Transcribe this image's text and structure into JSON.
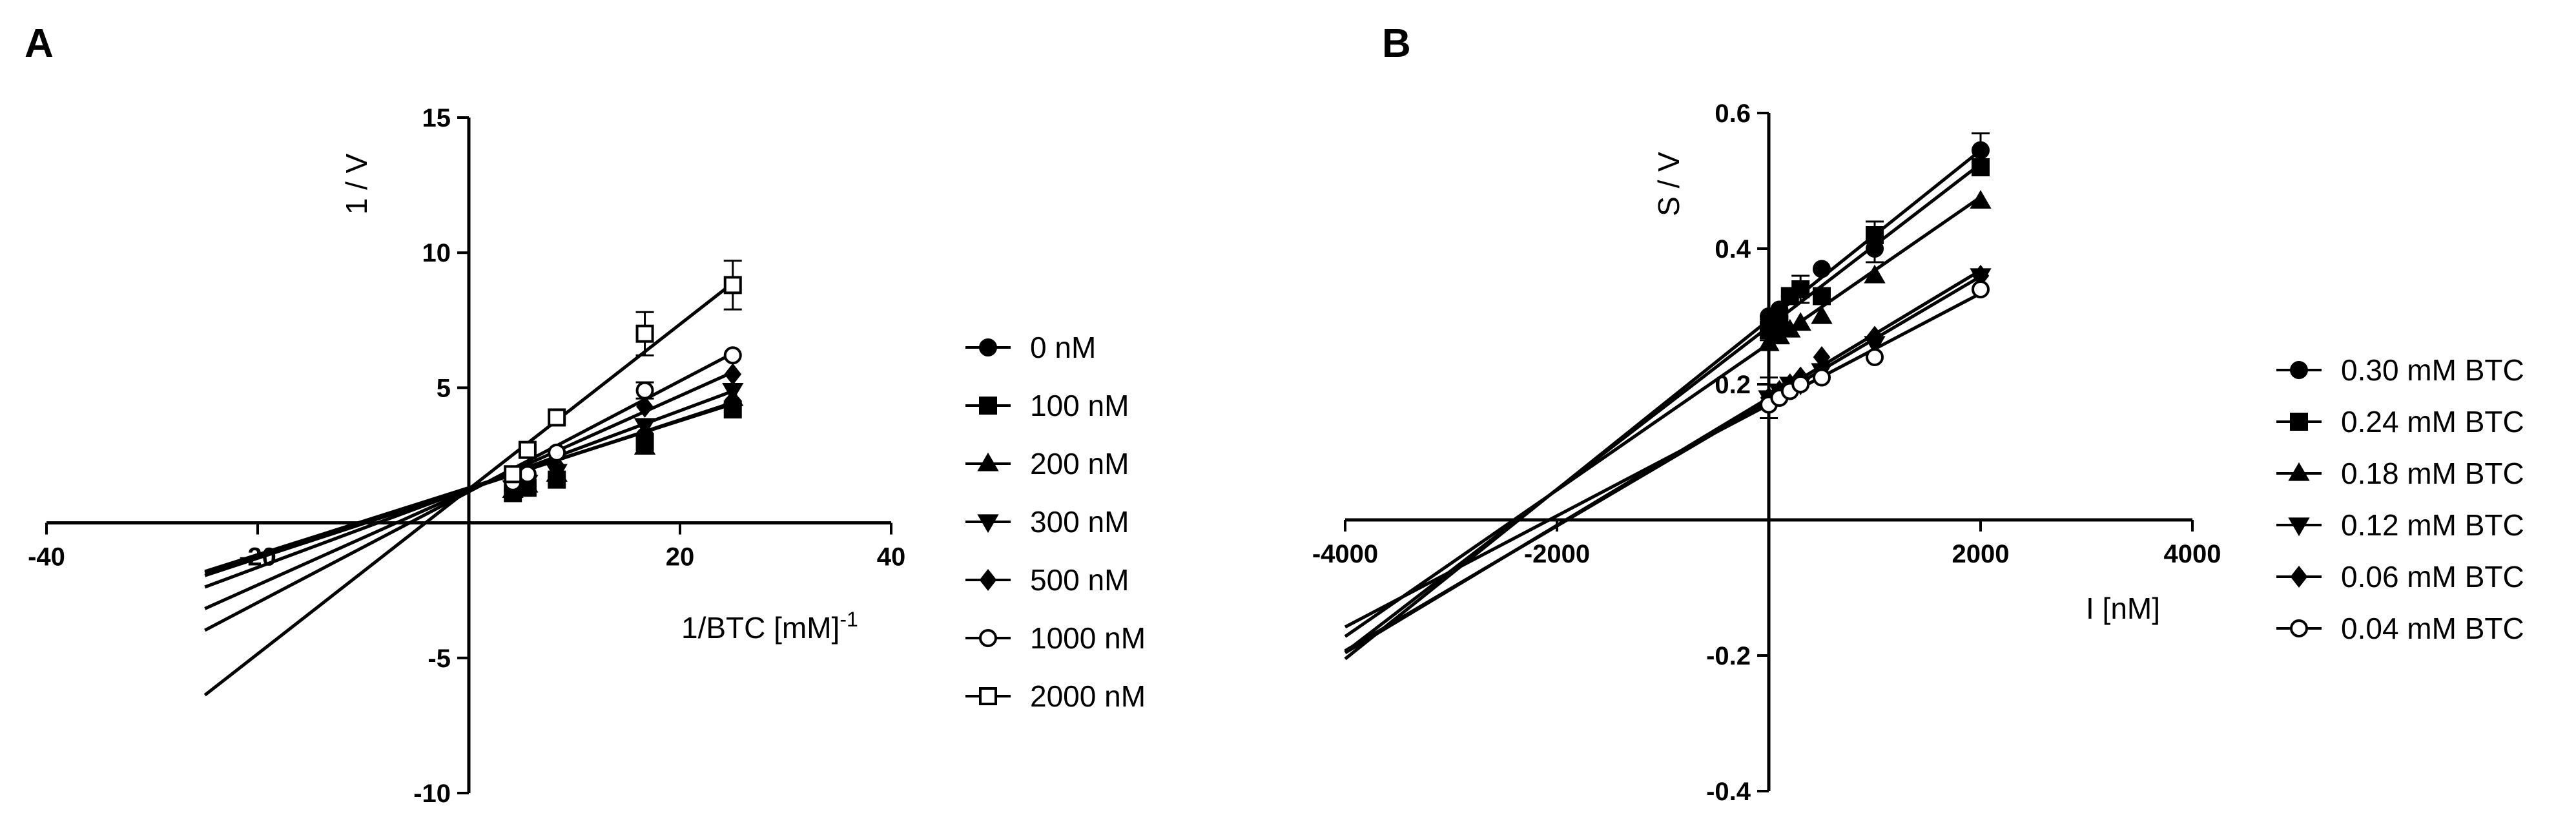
{
  "chart_data": [
    {
      "panel_label": "A",
      "type": "line",
      "title": "",
      "xlabel": "1/BTC [mM]",
      "xlabel_superscript": "-1",
      "ylabel": "1 / V",
      "xlim": [
        -40,
        40
      ],
      "ylim": [
        -10,
        15
      ],
      "xticks": [
        -40,
        -20,
        20,
        40
      ],
      "yticks": [
        -10,
        -5,
        5,
        10,
        15
      ],
      "grid": false,
      "legend_position": "right",
      "line_x_range": [
        -25,
        25
      ],
      "x_points": [
        4.17,
        5.56,
        8.33,
        16.67,
        25
      ],
      "series": [
        {
          "name": "0 nM",
          "marker": "circle-filled",
          "slope": 0.124,
          "intercept": 1.3,
          "values": [
            1.2,
            1.4,
            1.7,
            3.2,
            4.4
          ],
          "errors": [
            0,
            0,
            0,
            0,
            0
          ]
        },
        {
          "name": "100 nM",
          "marker": "square-filled",
          "slope": 0.128,
          "intercept": 1.25,
          "values": [
            1.1,
            1.3,
            1.6,
            3.0,
            4.2
          ],
          "errors": [
            0,
            0,
            0,
            0,
            0
          ]
        },
        {
          "name": "200 nM",
          "marker": "triangle-filled",
          "slope": 0.125,
          "intercept": 1.28,
          "values": [
            1.2,
            1.4,
            1.8,
            2.8,
            4.6
          ],
          "errors": [
            0,
            0,
            0,
            0,
            0
          ]
        },
        {
          "name": "300 nM",
          "marker": "triangle-down-filled",
          "slope": 0.145,
          "intercept": 1.25,
          "values": [
            1.3,
            1.5,
            1.9,
            3.6,
            4.9
          ],
          "errors": [
            0,
            0,
            0,
            0,
            0
          ]
        },
        {
          "name": "500 nM",
          "marker": "diamond-filled",
          "slope": 0.175,
          "intercept": 1.2,
          "values": [
            1.3,
            1.6,
            2.1,
            4.3,
            5.5
          ],
          "errors": [
            0,
            0,
            0,
            0,
            0
          ]
        },
        {
          "name": "1000 nM",
          "marker": "circle-open",
          "slope": 0.205,
          "intercept": 1.15,
          "values": [
            1.5,
            1.8,
            2.6,
            4.9,
            6.2
          ],
          "errors": [
            0,
            0,
            0,
            0.3,
            0
          ]
        },
        {
          "name": "2000 nM",
          "marker": "square-open",
          "slope": 0.305,
          "intercept": 1.25,
          "values": [
            1.8,
            2.7,
            3.9,
            7.0,
            8.8
          ],
          "errors": [
            0,
            0,
            0,
            0.8,
            0.9
          ]
        }
      ]
    },
    {
      "panel_label": "B",
      "type": "line",
      "title": "",
      "xlabel": "I [nM]",
      "ylabel": "S / V",
      "xlim": [
        -4000,
        4000
      ],
      "ylim": [
        -0.4,
        0.6
      ],
      "xticks": [
        -4000,
        -2000,
        2000,
        4000
      ],
      "yticks": [
        -0.4,
        -0.2,
        0.2,
        0.4,
        0.6
      ],
      "grid": false,
      "legend_position": "right",
      "line_x_range": [
        -4000,
        2000
      ],
      "x_points": [
        0,
        100,
        200,
        300,
        500,
        1000,
        2000
      ],
      "series": [
        {
          "name": "0.30 mM BTC",
          "marker": "circle-filled",
          "slope": 0.000125,
          "intercept": 0.295,
          "values": [
            0.3,
            0.31,
            0.33,
            0.34,
            0.37,
            0.4,
            0.545
          ],
          "errors": [
            0,
            0,
            0,
            0.02,
            0,
            0.02,
            0.025
          ]
        },
        {
          "name": "0.24 mM BTC",
          "marker": "square-filled",
          "slope": 0.00012,
          "intercept": 0.285,
          "values": [
            0.28,
            0.29,
            0.33,
            0.34,
            0.33,
            0.42,
            0.52
          ],
          "errors": [
            0.015,
            0,
            0,
            0,
            0,
            0.02,
            0
          ]
        },
        {
          "name": "0.18 mM BTC",
          "marker": "triangle-filled",
          "slope": 0.000108,
          "intercept": 0.26,
          "values": [
            0.26,
            0.27,
            0.28,
            0.29,
            0.3,
            0.36,
            0.47
          ],
          "errors": [
            0,
            0,
            0,
            0,
            0,
            0,
            0
          ]
        },
        {
          "name": "0.12 mM BTC",
          "marker": "triangle-down-filled",
          "slope": 9.4e-05,
          "intercept": 0.18,
          "values": [
            0.18,
            0.19,
            0.2,
            0.2,
            0.22,
            0.26,
            0.36
          ],
          "errors": [
            0,
            0,
            0,
            0,
            0,
            0,
            0
          ]
        },
        {
          "name": "0.06 mM BTC",
          "marker": "diamond-filled",
          "slope": 9.2e-05,
          "intercept": 0.175,
          "values": [
            0.18,
            0.19,
            0.2,
            0.21,
            0.24,
            0.27,
            0.36
          ],
          "errors": [
            0.03,
            0,
            0,
            0,
            0,
            0,
            0
          ]
        },
        {
          "name": "0.04 mM BTC",
          "marker": "circle-open",
          "slope": 8.2e-05,
          "intercept": 0.17,
          "values": [
            0.17,
            0.18,
            0.19,
            0.2,
            0.21,
            0.24,
            0.34
          ],
          "errors": [
            0,
            0,
            0,
            0,
            0,
            0,
            0
          ]
        }
      ]
    }
  ]
}
